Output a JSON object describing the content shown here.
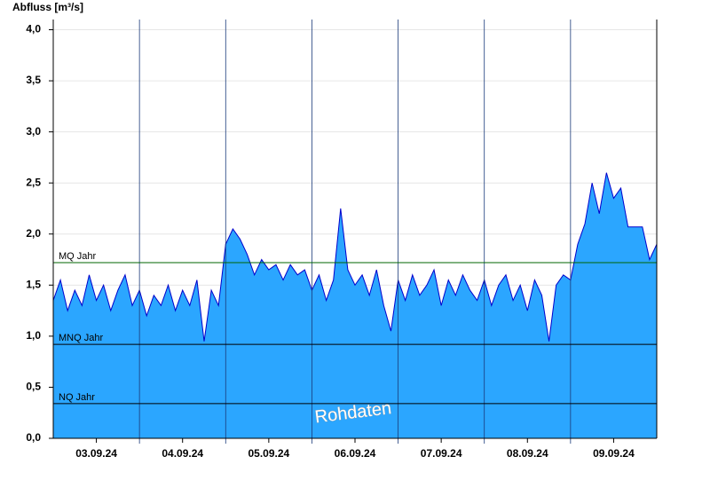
{
  "chart_data": {
    "type": "area",
    "title": "Abfluss [m³/s]",
    "watermark": "Rohdaten",
    "xlim": [
      0,
      168
    ],
    "xticks": [
      {
        "value": 12,
        "label": "03.09.24"
      },
      {
        "value": 36,
        "label": "04.09.24"
      },
      {
        "value": 60,
        "label": "05.09.24"
      },
      {
        "value": 84,
        "label": "06.09.24"
      },
      {
        "value": 108,
        "label": "07.09.24"
      },
      {
        "value": 132,
        "label": "08.09.24"
      },
      {
        "value": 156,
        "label": "09.09.24"
      }
    ],
    "xgrid": [
      24,
      48,
      72,
      96,
      120,
      144
    ],
    "ylim": [
      0,
      4.1
    ],
    "yticks": [
      {
        "value": 0,
        "label": "0,0"
      },
      {
        "value": 0.5,
        "label": "0,5"
      },
      {
        "value": 1,
        "label": "1,0"
      },
      {
        "value": 1.5,
        "label": "1,5"
      },
      {
        "value": 2,
        "label": "2,0"
      },
      {
        "value": 2.5,
        "label": "2,5"
      },
      {
        "value": 3,
        "label": "3,0"
      },
      {
        "value": 3.5,
        "label": "3,5"
      },
      {
        "value": 4,
        "label": "4,0"
      }
    ],
    "grid": true,
    "x": [
      0,
      2,
      4,
      6,
      8,
      10,
      12,
      14,
      16,
      18,
      20,
      22,
      24,
      26,
      28,
      30,
      32,
      34,
      36,
      38,
      40,
      42,
      44,
      46,
      48,
      50,
      52,
      54,
      56,
      58,
      60,
      62,
      64,
      66,
      68,
      70,
      72,
      74,
      76,
      78,
      80,
      82,
      84,
      86,
      88,
      90,
      92,
      94,
      96,
      98,
      100,
      102,
      104,
      106,
      108,
      110,
      112,
      114,
      116,
      118,
      120,
      122,
      124,
      126,
      128,
      130,
      132,
      134,
      136,
      138,
      140,
      142,
      144,
      146,
      148,
      150,
      152,
      154,
      156,
      158,
      160,
      162,
      164,
      166,
      168
    ],
    "series": [
      {
        "color": "#0000cc",
        "fill": "#2ba6ff",
        "values": [
          1.35,
          1.55,
          1.25,
          1.45,
          1.3,
          1.6,
          1.35,
          1.5,
          1.25,
          1.45,
          1.6,
          1.3,
          1.45,
          1.2,
          1.4,
          1.3,
          1.5,
          1.25,
          1.45,
          1.3,
          1.55,
          0.95,
          1.45,
          1.3,
          1.9,
          2.05,
          1.95,
          1.8,
          1.6,
          1.75,
          1.65,
          1.7,
          1.55,
          1.7,
          1.6,
          1.65,
          1.45,
          1.6,
          1.35,
          1.55,
          2.25,
          1.65,
          1.5,
          1.6,
          1.4,
          1.65,
          1.3,
          1.05,
          1.55,
          1.35,
          1.6,
          1.4,
          1.5,
          1.65,
          1.3,
          1.55,
          1.4,
          1.6,
          1.45,
          1.35,
          1.55,
          1.3,
          1.5,
          1.6,
          1.35,
          1.5,
          1.25,
          1.55,
          1.4,
          0.95,
          1.5,
          1.6,
          1.55,
          1.9,
          2.1,
          2.5,
          2.2,
          2.6,
          2.35,
          2.45,
          2.07,
          2.07,
          2.07,
          1.75,
          1.9
        ]
      }
    ],
    "reference_lines": [
      {
        "name": "MQ Jahr",
        "value": 1.72,
        "color": "#006600"
      },
      {
        "name": "MNQ Jahr",
        "value": 0.92,
        "color": "#000000"
      },
      {
        "name": "NQ Jahr",
        "value": 0.34,
        "color": "#000000"
      }
    ]
  }
}
